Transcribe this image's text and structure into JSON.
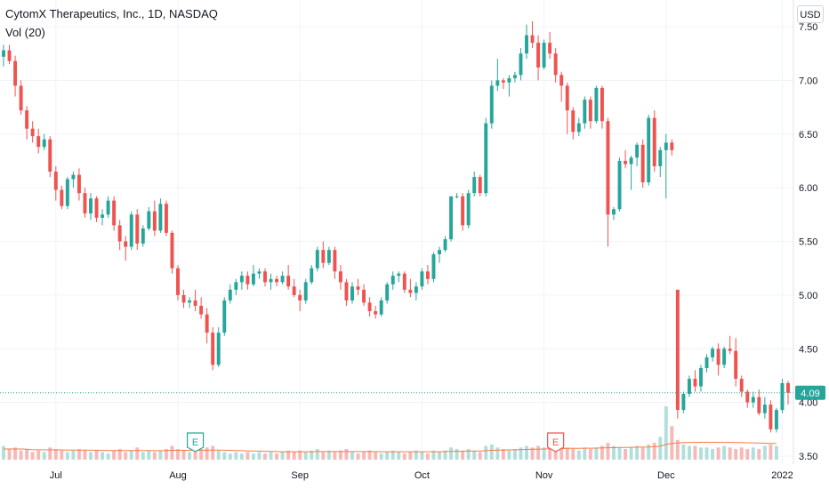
{
  "header": {
    "title": "CytomX Therapeutics, Inc., 1D, NASDAQ",
    "volume_label": "Vol (20)",
    "currency": "USD"
  },
  "colors": {
    "up": "#26a69a",
    "down": "#ef5350",
    "up_vol": "#b2dfdb",
    "down_vol": "#f7b9b7",
    "vol_ma": "#f57c4b",
    "grid": "#f0f3fa",
    "last_price_line": "#26a69a"
  },
  "chart_data": {
    "type": "candlestick",
    "title": "CytomX Therapeutics, Inc., 1D, NASDAQ",
    "y_axis_position": "right",
    "ylim": [
      3.5,
      7.55
    ],
    "y_ticks": [
      "7.50",
      "7.00",
      "6.50",
      "6.00",
      "5.50",
      "5.00",
      "4.50",
      "4.00",
      "3.50"
    ],
    "x_tick_labels": [
      "Jul",
      "Aug",
      "Sep",
      "Oct",
      "Nov",
      "Dec",
      "2022"
    ],
    "x_tick_index": [
      9,
      30,
      51,
      72,
      93,
      114,
      134
    ],
    "last_price": "4.09",
    "earnings_markers": [
      {
        "label": "E",
        "index": 33,
        "color": "#26a69a"
      },
      {
        "label": "E",
        "index": 95,
        "color": "#ef5350"
      }
    ],
    "ohlc": [
      [
        7.22,
        7.33,
        7.13,
        7.28
      ],
      [
        7.28,
        7.33,
        7.15,
        7.18
      ],
      [
        7.18,
        7.23,
        6.85,
        6.95
      ],
      [
        6.95,
        7.0,
        6.68,
        6.72
      ],
      [
        6.72,
        6.76,
        6.45,
        6.55
      ],
      [
        6.55,
        6.62,
        6.42,
        6.48
      ],
      [
        6.48,
        6.55,
        6.32,
        6.38
      ],
      [
        6.38,
        6.5,
        6.35,
        6.45
      ],
      [
        6.45,
        6.48,
        6.1,
        6.15
      ],
      [
        6.15,
        6.2,
        5.88,
        5.98
      ],
      [
        5.98,
        6.02,
        5.8,
        5.83
      ],
      [
        5.83,
        6.1,
        5.8,
        6.08
      ],
      [
        6.08,
        6.15,
        6.0,
        6.12
      ],
      [
        6.12,
        6.18,
        5.88,
        5.95
      ],
      [
        5.95,
        6.0,
        5.72,
        5.76
      ],
      [
        5.76,
        5.95,
        5.7,
        5.9
      ],
      [
        5.9,
        5.92,
        5.68,
        5.72
      ],
      [
        5.72,
        5.8,
        5.65,
        5.75
      ],
      [
        5.75,
        5.92,
        5.72,
        5.88
      ],
      [
        5.88,
        5.92,
        5.6,
        5.65
      ],
      [
        5.65,
        5.7,
        5.42,
        5.5
      ],
      [
        5.5,
        5.55,
        5.32,
        5.45
      ],
      [
        5.45,
        5.78,
        5.42,
        5.75
      ],
      [
        5.75,
        5.8,
        5.42,
        5.48
      ],
      [
        5.48,
        5.65,
        5.45,
        5.62
      ],
      [
        5.62,
        5.82,
        5.6,
        5.78
      ],
      [
        5.78,
        5.88,
        5.55,
        5.6
      ],
      [
        5.6,
        5.9,
        5.58,
        5.85
      ],
      [
        5.85,
        5.88,
        5.55,
        5.58
      ],
      [
        5.58,
        5.6,
        5.2,
        5.25
      ],
      [
        5.25,
        5.28,
        4.95,
        5.0
      ],
      [
        5.0,
        5.05,
        4.88,
        4.93
      ],
      [
        4.93,
        4.98,
        4.88,
        4.95
      ],
      [
        4.95,
        5.05,
        4.85,
        4.9
      ],
      [
        4.9,
        4.98,
        4.78,
        4.82
      ],
      [
        4.82,
        4.88,
        4.55,
        4.65
      ],
      [
        4.65,
        4.7,
        4.3,
        4.35
      ],
      [
        4.35,
        4.7,
        4.33,
        4.65
      ],
      [
        4.65,
        4.98,
        4.62,
        4.95
      ],
      [
        4.95,
        5.1,
        4.92,
        5.05
      ],
      [
        5.05,
        5.15,
        5.0,
        5.12
      ],
      [
        5.12,
        5.22,
        5.05,
        5.18
      ],
      [
        5.18,
        5.22,
        5.05,
        5.1
      ],
      [
        5.1,
        5.28,
        5.08,
        5.2
      ],
      [
        5.2,
        5.25,
        5.15,
        5.22
      ],
      [
        5.22,
        5.25,
        5.08,
        5.12
      ],
      [
        5.12,
        5.2,
        5.05,
        5.15
      ],
      [
        5.15,
        5.18,
        5.08,
        5.12
      ],
      [
        5.12,
        5.22,
        5.1,
        5.18
      ],
      [
        5.18,
        5.28,
        5.05,
        5.08
      ],
      [
        5.08,
        5.15,
        4.98,
        5.0
      ],
      [
        5.0,
        5.05,
        4.85,
        4.95
      ],
      [
        4.95,
        5.15,
        4.92,
        5.12
      ],
      [
        5.12,
        5.28,
        5.1,
        5.25
      ],
      [
        5.25,
        5.45,
        5.22,
        5.42
      ],
      [
        5.42,
        5.5,
        5.25,
        5.3
      ],
      [
        5.3,
        5.45,
        5.28,
        5.42
      ],
      [
        5.42,
        5.45,
        5.15,
        5.22
      ],
      [
        5.22,
        5.28,
        5.05,
        5.12
      ],
      [
        5.12,
        5.15,
        4.9,
        4.95
      ],
      [
        4.95,
        5.12,
        4.92,
        5.08
      ],
      [
        5.08,
        5.15,
        5.0,
        5.05
      ],
      [
        5.05,
        5.1,
        4.9,
        4.93
      ],
      [
        4.93,
        4.98,
        4.8,
        4.85
      ],
      [
        4.85,
        4.9,
        4.78,
        4.82
      ],
      [
        4.82,
        4.98,
        4.8,
        4.95
      ],
      [
        4.95,
        5.12,
        4.92,
        5.1
      ],
      [
        5.1,
        5.22,
        5.05,
        5.18
      ],
      [
        5.18,
        5.22,
        5.12,
        5.2
      ],
      [
        5.2,
        5.22,
        5.02,
        5.05
      ],
      [
        5.05,
        5.15,
        4.98,
        5.02
      ],
      [
        5.02,
        5.12,
        4.95,
        5.08
      ],
      [
        5.08,
        5.25,
        5.05,
        5.22
      ],
      [
        5.22,
        5.28,
        5.1,
        5.15
      ],
      [
        5.15,
        5.4,
        5.12,
        5.38
      ],
      [
        5.38,
        5.45,
        5.3,
        5.42
      ],
      [
        5.42,
        5.55,
        5.4,
        5.52
      ],
      [
        5.52,
        5.9,
        5.5,
        5.92
      ],
      [
        5.92,
        5.95,
        5.9,
        5.92
      ],
      [
        5.92,
        5.95,
        5.6,
        5.65
      ],
      [
        5.65,
        5.98,
        5.62,
        5.95
      ],
      [
        5.95,
        6.15,
        5.92,
        6.1
      ],
      [
        6.1,
        6.12,
        5.92,
        5.95
      ],
      [
        5.95,
        6.65,
        5.92,
        6.6
      ],
      [
        6.6,
        7.0,
        6.55,
        6.95
      ],
      [
        6.95,
        7.2,
        6.9,
        7.0
      ],
      [
        7.0,
        7.02,
        6.92,
        6.98
      ],
      [
        6.98,
        7.05,
        6.85,
        7.02
      ],
      [
        7.02,
        7.08,
        6.98,
        7.05
      ],
      [
        7.05,
        7.3,
        7.0,
        7.25
      ],
      [
        7.25,
        7.52,
        7.2,
        7.42
      ],
      [
        7.42,
        7.55,
        7.3,
        7.35
      ],
      [
        7.35,
        7.42,
        7.0,
        7.12
      ],
      [
        7.12,
        7.38,
        7.1,
        7.35
      ],
      [
        7.35,
        7.45,
        7.2,
        7.25
      ],
      [
        7.25,
        7.3,
        6.98,
        7.05
      ],
      [
        7.05,
        7.08,
        6.8,
        6.95
      ],
      [
        6.95,
        6.98,
        6.5,
        6.72
      ],
      [
        6.72,
        6.75,
        6.45,
        6.52
      ],
      [
        6.52,
        6.65,
        6.48,
        6.6
      ],
      [
        6.6,
        6.85,
        6.55,
        6.82
      ],
      [
        6.82,
        6.85,
        6.55,
        6.62
      ],
      [
        6.62,
        6.95,
        6.6,
        6.93
      ],
      [
        6.93,
        6.95,
        6.55,
        6.62
      ],
      [
        6.62,
        6.65,
        5.45,
        5.75
      ],
      [
        5.75,
        5.82,
        5.7,
        5.8
      ],
      [
        5.8,
        6.28,
        5.78,
        6.25
      ],
      [
        6.25,
        6.35,
        6.18,
        6.22
      ],
      [
        6.22,
        6.3,
        5.98,
        6.28
      ],
      [
        6.28,
        6.42,
        6.2,
        6.4
      ],
      [
        6.4,
        6.45,
        6.0,
        6.05
      ],
      [
        6.05,
        6.68,
        6.02,
        6.65
      ],
      [
        6.65,
        6.72,
        6.15,
        6.2
      ],
      [
        6.2,
        6.38,
        6.1,
        6.35
      ],
      [
        6.35,
        6.5,
        5.9,
        6.42
      ],
      [
        6.42,
        6.45,
        6.3,
        6.35
      ],
      [
        5.05,
        5.05,
        3.85,
        3.93
      ],
      [
        3.93,
        4.1,
        3.9,
        4.08
      ],
      [
        4.08,
        4.25,
        4.05,
        4.22
      ],
      [
        4.22,
        4.3,
        4.1,
        4.15
      ],
      [
        4.15,
        4.35,
        4.1,
        4.32
      ],
      [
        4.32,
        4.45,
        4.28,
        4.42
      ],
      [
        4.42,
        4.52,
        4.38,
        4.5
      ],
      [
        4.5,
        4.55,
        4.25,
        4.35
      ],
      [
        4.35,
        4.52,
        4.32,
        4.5
      ],
      [
        4.5,
        4.62,
        4.45,
        4.48
      ],
      [
        4.48,
        4.6,
        4.15,
        4.22
      ],
      [
        4.22,
        4.25,
        4.05,
        4.1
      ],
      [
        4.1,
        4.12,
        3.95,
        4.0
      ],
      [
        4.0,
        4.1,
        3.95,
        4.05
      ],
      [
        4.05,
        4.12,
        3.88,
        3.9
      ],
      [
        3.9,
        4.05,
        3.85,
        3.98
      ],
      [
        3.98,
        4.02,
        3.72,
        3.75
      ],
      [
        3.75,
        3.95,
        3.72,
        3.93
      ],
      [
        3.93,
        4.22,
        3.9,
        4.18
      ],
      [
        4.18,
        4.2,
        3.98,
        4.09
      ]
    ],
    "volume": [
      0.9,
      0.7,
      0.8,
      0.6,
      0.7,
      0.5,
      0.6,
      0.5,
      0.8,
      0.7,
      0.6,
      0.5,
      0.6,
      0.7,
      0.6,
      0.5,
      0.6,
      0.5,
      0.4,
      0.6,
      0.7,
      0.5,
      0.6,
      0.8,
      0.5,
      0.6,
      0.5,
      0.6,
      0.7,
      0.9,
      0.7,
      0.6,
      0.5,
      0.6,
      0.7,
      0.8,
      0.9,
      0.6,
      0.5,
      0.4,
      0.5,
      0.4,
      0.5,
      0.4,
      0.5,
      0.4,
      0.5,
      0.4,
      0.5,
      0.6,
      0.5,
      0.6,
      0.5,
      0.6,
      0.7,
      0.5,
      0.6,
      0.5,
      0.6,
      0.7,
      0.5,
      0.4,
      0.5,
      0.6,
      0.5,
      0.4,
      0.5,
      0.6,
      0.5,
      0.4,
      0.5,
      0.6,
      0.5,
      0.4,
      0.6,
      0.5,
      0.6,
      0.8,
      0.7,
      0.6,
      0.7,
      0.6,
      0.5,
      0.9,
      1.0,
      0.8,
      0.7,
      0.6,
      0.7,
      0.8,
      0.9,
      0.8,
      0.9,
      0.8,
      0.7,
      0.8,
      0.9,
      0.8,
      0.7,
      0.6,
      0.8,
      0.7,
      0.8,
      0.9,
      1.1,
      0.9,
      0.8,
      0.7,
      0.8,
      0.9,
      0.8,
      1.0,
      1.1,
      1.5,
      3.5,
      2.2,
      1.3,
      1.0,
      0.9,
      0.9,
      0.8,
      0.8,
      0.7,
      0.8,
      0.9,
      0.8,
      0.7,
      0.8,
      0.7,
      0.8,
      0.7,
      0.9,
      1.0,
      0.9
    ],
    "volume_ma": [
      0.7,
      0.7,
      0.7,
      0.7,
      0.68,
      0.66,
      0.65,
      0.64,
      0.64,
      0.64,
      0.64,
      0.63,
      0.63,
      0.63,
      0.63,
      0.62,
      0.62,
      0.61,
      0.6,
      0.6,
      0.6,
      0.6,
      0.6,
      0.6,
      0.6,
      0.6,
      0.59,
      0.59,
      0.6,
      0.61,
      0.61,
      0.61,
      0.61,
      0.61,
      0.62,
      0.62,
      0.63,
      0.63,
      0.62,
      0.61,
      0.6,
      0.59,
      0.58,
      0.57,
      0.56,
      0.55,
      0.54,
      0.53,
      0.52,
      0.52,
      0.52,
      0.52,
      0.52,
      0.52,
      0.53,
      0.53,
      0.53,
      0.53,
      0.53,
      0.53,
      0.53,
      0.53,
      0.53,
      0.53,
      0.53,
      0.52,
      0.52,
      0.52,
      0.52,
      0.52,
      0.52,
      0.52,
      0.52,
      0.52,
      0.52,
      0.52,
      0.53,
      0.54,
      0.55,
      0.55,
      0.56,
      0.57,
      0.57,
      0.59,
      0.61,
      0.62,
      0.63,
      0.64,
      0.65,
      0.66,
      0.67,
      0.68,
      0.69,
      0.7,
      0.71,
      0.72,
      0.73,
      0.74,
      0.74,
      0.74,
      0.75,
      0.75,
      0.76,
      0.77,
      0.78,
      0.79,
      0.8,
      0.8,
      0.81,
      0.82,
      0.82,
      0.83,
      0.85,
      0.88,
      1.0,
      1.06,
      1.1,
      1.12,
      1.13,
      1.14,
      1.14,
      1.14,
      1.14,
      1.14,
      1.13,
      1.13,
      1.12,
      1.12,
      1.11,
      1.1,
      1.09,
      1.08,
      1.07,
      1.06
    ]
  }
}
